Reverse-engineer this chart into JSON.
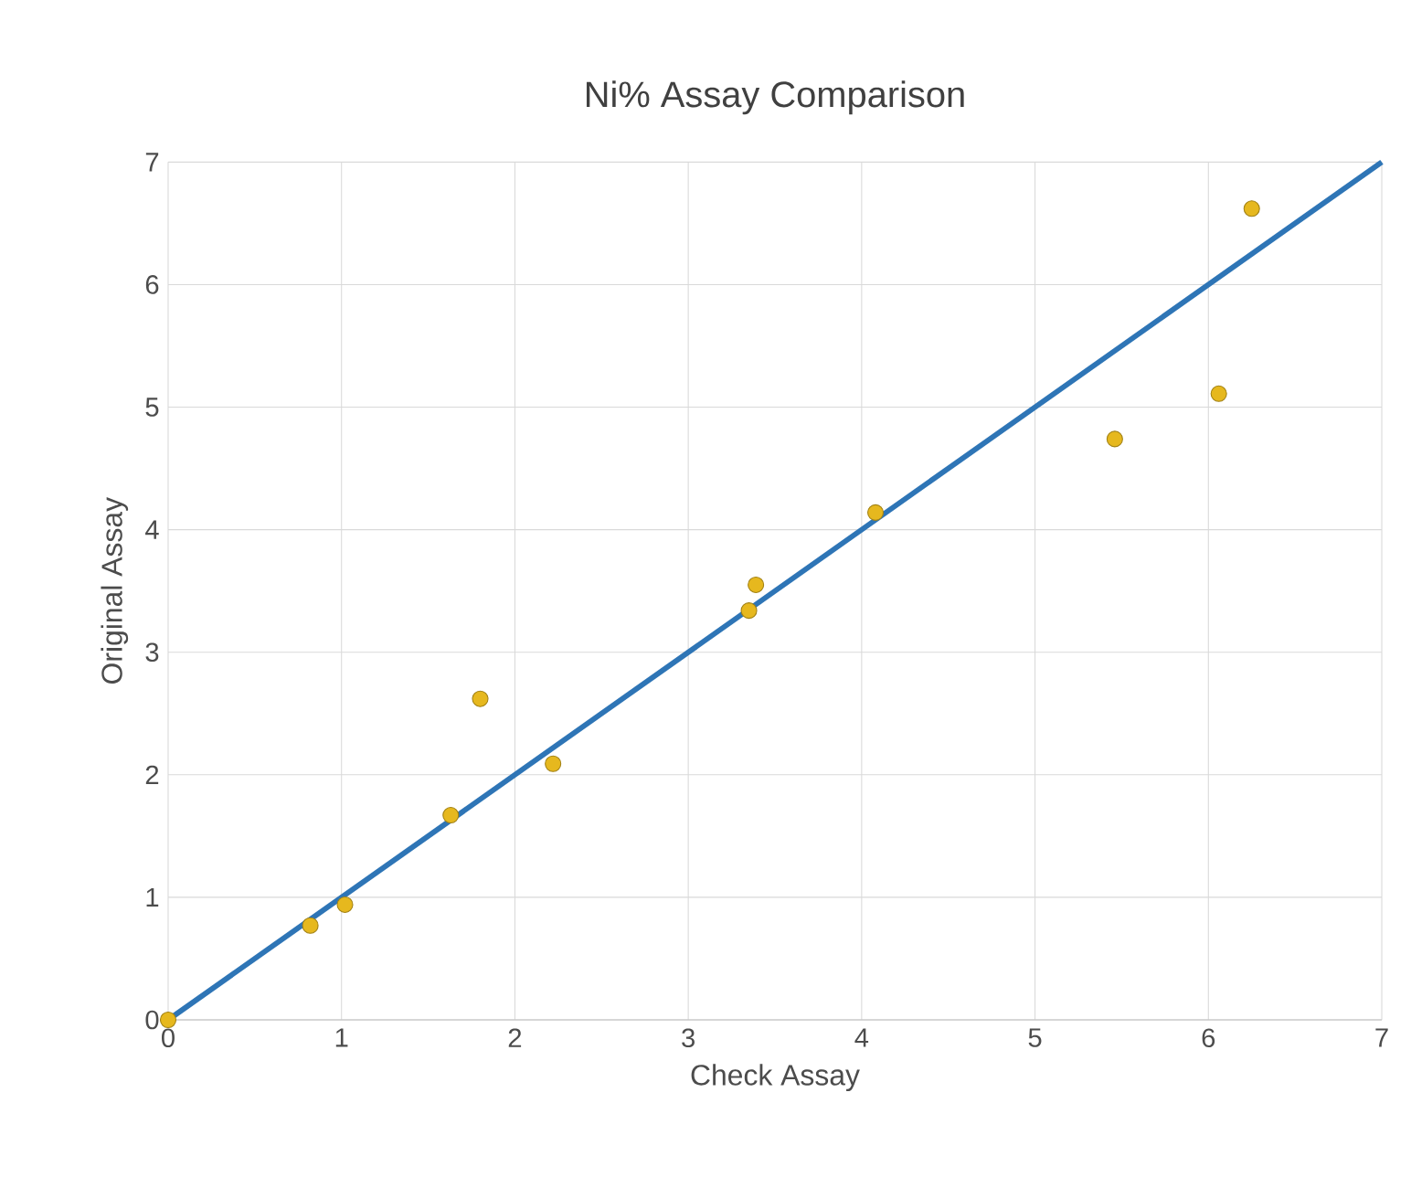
{
  "chart_data": {
    "type": "scatter",
    "title": "Ni% Assay Comparison",
    "xlabel": "Check Assay",
    "ylabel": "Original Assay",
    "xlim": [
      0,
      7
    ],
    "ylim": [
      0,
      7
    ],
    "xticks": [
      0,
      1,
      2,
      3,
      4,
      5,
      6,
      7
    ],
    "yticks": [
      0,
      1,
      2,
      3,
      4,
      5,
      6,
      7
    ],
    "grid": true,
    "series": [
      {
        "marker": "circle",
        "color": "#e6b81e",
        "x": [
          0,
          0.82,
          1.02,
          1.63,
          1.8,
          2.22,
          3.35,
          3.39,
          4.08,
          5.46,
          6.06,
          6.25
        ],
        "values": [
          0,
          0.77,
          0.94,
          1.67,
          2.62,
          2.09,
          3.34,
          3.55,
          4.14,
          4.74,
          5.11,
          6.62
        ]
      },
      {
        "type": "line",
        "marker": "none",
        "color": "#2e75b6",
        "x": [
          0,
          7
        ],
        "values": [
          0,
          7
        ]
      }
    ]
  }
}
